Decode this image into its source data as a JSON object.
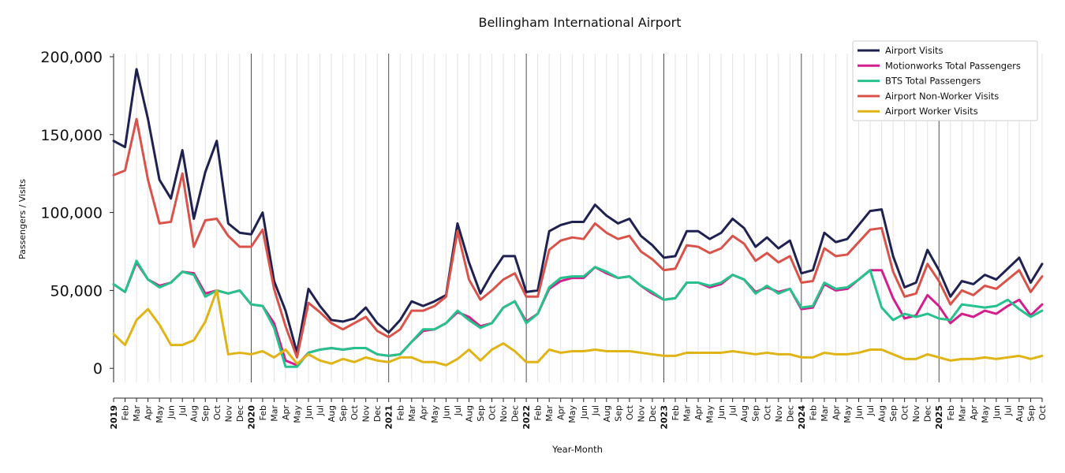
{
  "chart_data": {
    "type": "line",
    "title": "Bellingham International Airport",
    "xlabel": "Year-Month",
    "ylabel": "Passengers / Visits",
    "ylim": [
      -9000,
      202000
    ],
    "yticks": [
      0,
      50000,
      100000,
      150000,
      200000
    ],
    "ytick_labels": [
      "0",
      "50,000",
      "100,000",
      "150,000",
      "200,000"
    ],
    "grid": "vertical, monthly; darker line at each January",
    "legend_position": "top-right",
    "categories": [
      "2019",
      "Feb",
      "Mar",
      "Apr",
      "May",
      "Jun",
      "Jul",
      "Aug",
      "Sep",
      "Oct",
      "Nov",
      "Dec",
      "2020",
      "Feb",
      "Mar",
      "Apr",
      "May",
      "Jun",
      "Jul",
      "Aug",
      "Sep",
      "Oct",
      "Nov",
      "Dec",
      "2021",
      "Feb",
      "Mar",
      "Apr",
      "May",
      "Jun",
      "Jul",
      "Aug",
      "Sep",
      "Oct",
      "Nov",
      "Dec",
      "2022",
      "Feb",
      "Mar",
      "Apr",
      "May",
      "Jun",
      "Jul",
      "Aug",
      "Sep",
      "Oct",
      "Nov",
      "Dec",
      "2023",
      "Feb",
      "Mar",
      "Apr",
      "May",
      "Jun",
      "Jul",
      "Aug",
      "Sep",
      "Oct",
      "Nov",
      "Dec",
      "2024",
      "Feb",
      "Mar",
      "Apr",
      "May",
      "Jun",
      "Jul",
      "Aug",
      "Sep",
      "Oct",
      "Nov",
      "Dec",
      "2025",
      "Feb",
      "Mar",
      "Apr",
      "May",
      "Jun",
      "Jul",
      "Aug",
      "Sep",
      "Oct"
    ],
    "series": [
      {
        "name": "Airport Visits",
        "color": "#1f2151",
        "values": [
          146000,
          142000,
          192000,
          160000,
          121000,
          109000,
          140000,
          96000,
          126000,
          146000,
          93000,
          87000,
          86000,
          100000,
          56000,
          37000,
          10000,
          51000,
          40000,
          31000,
          30000,
          32000,
          39000,
          29000,
          23000,
          31000,
          43000,
          40000,
          43000,
          47000,
          93000,
          68000,
          48000,
          61000,
          72000,
          72000,
          49000,
          50000,
          88000,
          92000,
          94000,
          94000,
          105000,
          98000,
          93000,
          96000,
          85000,
          79000,
          71000,
          72000,
          88000,
          88000,
          83000,
          87000,
          96000,
          90000,
          78000,
          84000,
          77000,
          82000,
          61000,
          63000,
          87000,
          81000,
          83000,
          92000,
          101000,
          102000,
          72000,
          52000,
          55000,
          76000,
          63000,
          46000,
          56000,
          54000,
          60000,
          57000,
          64000,
          71000,
          55000,
          67000
        ]
      },
      {
        "name": "Motionworks Total Passengers",
        "color": "#d21f8d",
        "values": [
          54000,
          49000,
          68000,
          57000,
          53000,
          55000,
          62000,
          61000,
          48000,
          50000,
          48000,
          50000,
          41000,
          40000,
          29000,
          5000,
          2000,
          10000,
          12000,
          13000,
          12000,
          13000,
          13000,
          9000,
          8000,
          9000,
          17000,
          24000,
          25000,
          29000,
          36000,
          33000,
          27000,
          29000,
          39000,
          43000,
          30000,
          35000,
          51000,
          56000,
          58000,
          58000,
          65000,
          61000,
          58000,
          59000,
          53000,
          48000,
          44000,
          45000,
          55000,
          55000,
          52000,
          54000,
          60000,
          57000,
          49000,
          52000,
          49000,
          51000,
          38000,
          39000,
          54000,
          50000,
          51000,
          57000,
          63000,
          63000,
          45000,
          32000,
          34000,
          47000,
          40000,
          29000,
          35000,
          33000,
          37000,
          35000,
          40000,
          44000,
          34000,
          41000
        ]
      },
      {
        "name": "BTS Total Passengers",
        "color": "#26c28c",
        "values": [
          54000,
          49000,
          69000,
          57000,
          52000,
          55000,
          62000,
          60000,
          46000,
          50000,
          48000,
          50000,
          41000,
          40000,
          26000,
          1000,
          1000,
          10000,
          12000,
          13000,
          12000,
          13000,
          13000,
          9000,
          8000,
          9000,
          17000,
          25000,
          25000,
          29000,
          37000,
          31000,
          26000,
          29000,
          39000,
          43000,
          29000,
          35000,
          52000,
          58000,
          59000,
          59000,
          65000,
          62000,
          58000,
          59000,
          53000,
          49000,
          44000,
          45000,
          55000,
          55000,
          53000,
          55000,
          60000,
          57000,
          48000,
          53000,
          48000,
          51000,
          39000,
          40000,
          55000,
          51000,
          52000,
          57000,
          63000,
          39000,
          31000,
          35000,
          33000,
          35000,
          32000,
          31000,
          41000,
          40000,
          39000,
          40000,
          44000,
          38000,
          33000,
          37000
        ]
      },
      {
        "name": "Airport Non-Worker Visits",
        "color": "#d9534a",
        "values": [
          124000,
          127000,
          160000,
          121000,
          93000,
          94000,
          125000,
          78000,
          95000,
          96000,
          85000,
          78000,
          78000,
          89000,
          51000,
          27000,
          7000,
          42000,
          36000,
          29000,
          25000,
          29000,
          33000,
          24000,
          20000,
          25000,
          37000,
          37000,
          40000,
          46000,
          88000,
          57000,
          44000,
          50000,
          57000,
          61000,
          46000,
          46000,
          76000,
          82000,
          84000,
          83000,
          93000,
          87000,
          83000,
          85000,
          75000,
          70000,
          63000,
          64000,
          79000,
          78000,
          74000,
          77000,
          85000,
          80000,
          69000,
          74000,
          68000,
          72000,
          55000,
          56000,
          77000,
          72000,
          73000,
          81000,
          89000,
          90000,
          62000,
          46000,
          48000,
          67000,
          56000,
          41000,
          50000,
          47000,
          53000,
          51000,
          57000,
          63000,
          49000,
          59000
        ]
      },
      {
        "name": "Airport Worker Visits",
        "color": "#e0b416",
        "values": [
          22000,
          15000,
          31000,
          38000,
          28000,
          15000,
          15000,
          18000,
          30000,
          50000,
          9000,
          10000,
          9000,
          11000,
          7000,
          12000,
          3000,
          9000,
          5000,
          3000,
          6000,
          4000,
          7000,
          5000,
          4000,
          7000,
          7000,
          4000,
          4000,
          2000,
          6000,
          12000,
          5000,
          12000,
          16000,
          11000,
          4000,
          4000,
          12000,
          10000,
          11000,
          11000,
          12000,
          11000,
          11000,
          11000,
          10000,
          9000,
          8000,
          8000,
          10000,
          10000,
          10000,
          10000,
          11000,
          10000,
          9000,
          10000,
          9000,
          9000,
          7000,
          7000,
          10000,
          9000,
          9000,
          10000,
          12000,
          12000,
          9000,
          6000,
          6000,
          9000,
          7000,
          5000,
          6000,
          6000,
          7000,
          6000,
          7000,
          8000,
          6000,
          8000
        ]
      }
    ]
  }
}
